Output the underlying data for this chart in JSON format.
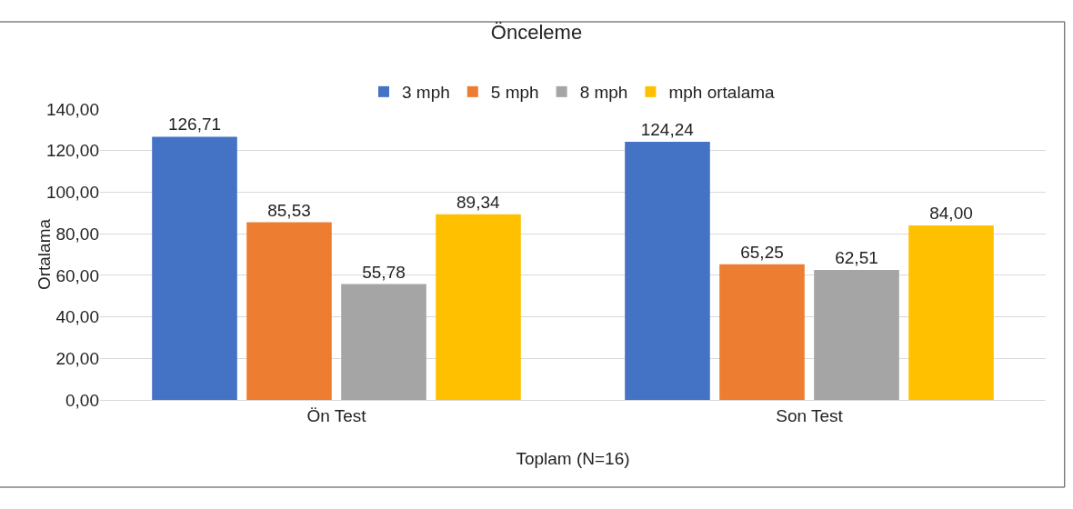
{
  "chart_data": {
    "type": "bar",
    "title": "Önceleme",
    "ylabel": "Ortalama",
    "xlabel": "Toplam (N=16)",
    "categories": [
      "Ön Test",
      "Son Test"
    ],
    "series": [
      {
        "name": "3 mph",
        "color": "#4472c4",
        "values": [
          126.71,
          124.24
        ],
        "value_labels": [
          "126,71",
          "124,24"
        ]
      },
      {
        "name": "5 mph",
        "color": "#ed7d31",
        "values": [
          85.53,
          65.25
        ],
        "value_labels": [
          "85,53",
          "65,25"
        ]
      },
      {
        "name": "8 mph",
        "color": "#a5a5a5",
        "values": [
          55.78,
          62.51
        ],
        "value_labels": [
          "55,78",
          "62,51"
        ]
      },
      {
        "name": "mph ortalama",
        "color": "#ffc000",
        "values": [
          89.34,
          84.0
        ],
        "value_labels": [
          "89,34",
          "84,00"
        ]
      }
    ],
    "ylim": [
      0,
      140
    ],
    "yticks": [
      {
        "value": 0,
        "label": "0,00"
      },
      {
        "value": 20,
        "label": "20,00"
      },
      {
        "value": 40,
        "label": "40,00"
      },
      {
        "value": 60,
        "label": "60,00"
      },
      {
        "value": 80,
        "label": "80,00"
      },
      {
        "value": 100,
        "label": "100,00"
      },
      {
        "value": 120,
        "label": "120,00"
      },
      {
        "value": 140,
        "label": "140,00"
      }
    ],
    "grid": "y",
    "legend": "top"
  }
}
